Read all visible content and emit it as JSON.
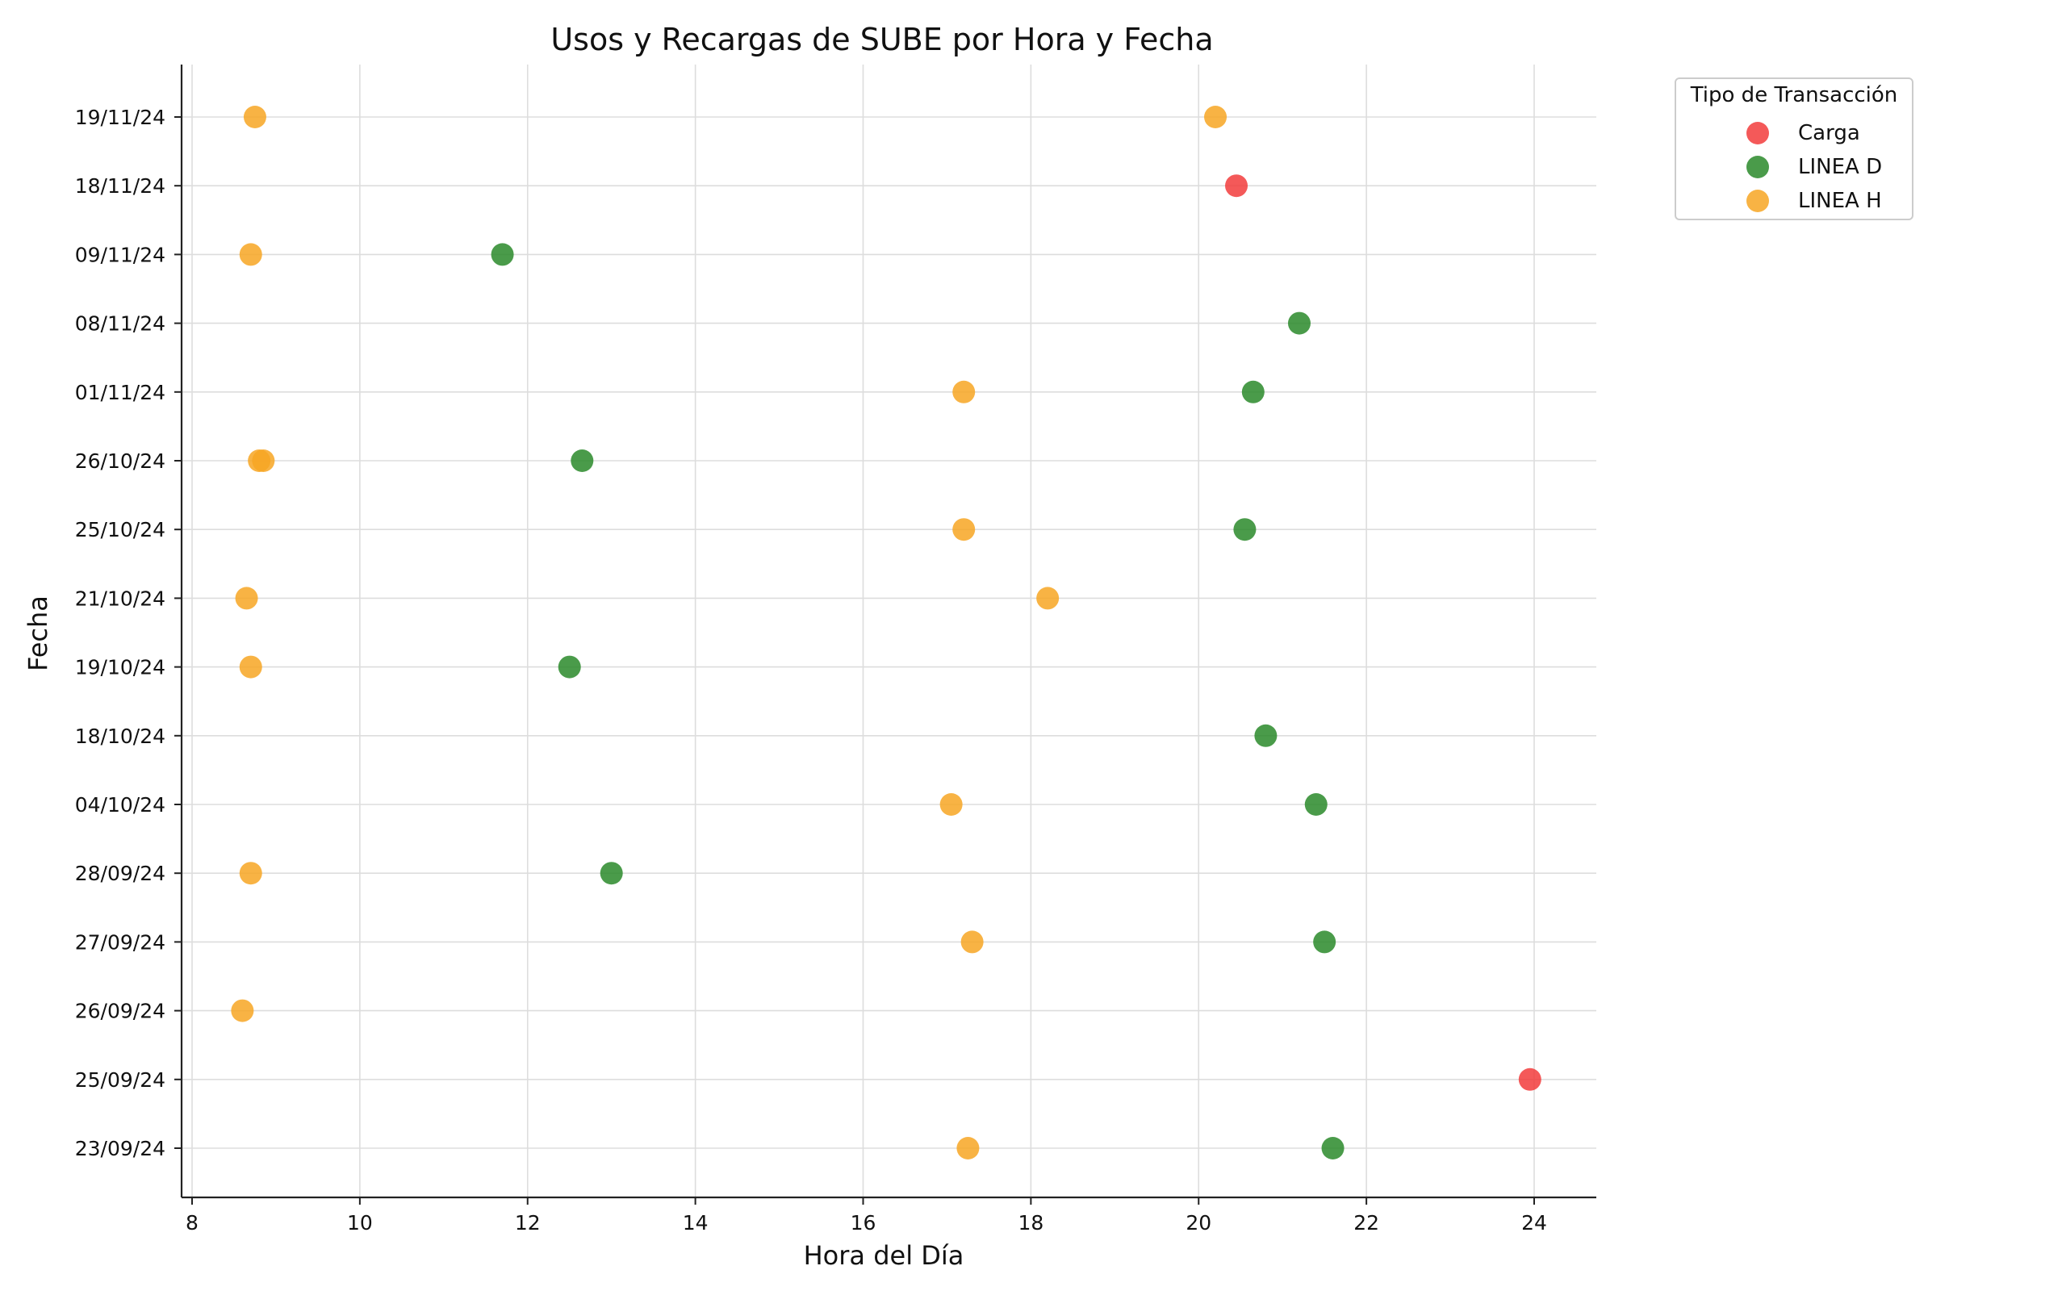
{
  "chart_data": {
    "type": "scatter",
    "title": "Usos y Recargas de SUBE por Hora y Fecha",
    "xlabel": "Hora del Día",
    "ylabel": "Fecha",
    "xlim": [
      7.9,
      24.7
    ],
    "xticks": [
      8,
      10,
      12,
      14,
      16,
      18,
      20,
      22,
      24
    ],
    "categories": [
      "23/09/24",
      "25/09/24",
      "26/09/24",
      "27/09/24",
      "28/09/24",
      "04/10/24",
      "18/10/24",
      "19/10/24",
      "21/10/24",
      "25/10/24",
      "26/10/24",
      "01/11/24",
      "08/11/24",
      "09/11/24",
      "18/11/24",
      "19/11/24"
    ],
    "grid": true,
    "legend": {
      "title": "Tipo de Transacción",
      "placement": "outside-top-right"
    },
    "series": [
      {
        "name": "Carga",
        "color": "#f23c3c",
        "points": [
          {
            "x": 20.45,
            "y": "18/11/24"
          },
          {
            "x": 23.95,
            "y": "25/09/24"
          }
        ]
      },
      {
        "name": "LINEA D",
        "color": "#2a8a2a",
        "points": [
          {
            "x": 11.7,
            "y": "09/11/24"
          },
          {
            "x": 21.2,
            "y": "08/11/24"
          },
          {
            "x": 20.65,
            "y": "01/11/24"
          },
          {
            "x": 12.65,
            "y": "26/10/24"
          },
          {
            "x": 20.55,
            "y": "25/10/24"
          },
          {
            "x": 12.5,
            "y": "19/10/24"
          },
          {
            "x": 20.8,
            "y": "18/10/24"
          },
          {
            "x": 21.4,
            "y": "04/10/24"
          },
          {
            "x": 13.0,
            "y": "28/09/24"
          },
          {
            "x": 21.5,
            "y": "27/09/24"
          },
          {
            "x": 21.6,
            "y": "23/09/24"
          }
        ]
      },
      {
        "name": "LINEA H",
        "color": "#f7a623",
        "points": [
          {
            "x": 8.75,
            "y": "19/11/24"
          },
          {
            "x": 20.2,
            "y": "19/11/24"
          },
          {
            "x": 8.7,
            "y": "09/11/24"
          },
          {
            "x": 17.2,
            "y": "01/11/24"
          },
          {
            "x": 8.8,
            "y": "26/10/24"
          },
          {
            "x": 8.85,
            "y": "26/10/24"
          },
          {
            "x": 17.2,
            "y": "25/10/24"
          },
          {
            "x": 8.65,
            "y": "21/10/24"
          },
          {
            "x": 18.2,
            "y": "21/10/24"
          },
          {
            "x": 8.7,
            "y": "19/10/24"
          },
          {
            "x": 17.05,
            "y": "04/10/24"
          },
          {
            "x": 8.7,
            "y": "28/09/24"
          },
          {
            "x": 17.3,
            "y": "27/09/24"
          },
          {
            "x": 8.6,
            "y": "26/09/24"
          },
          {
            "x": 17.25,
            "y": "23/09/24"
          }
        ]
      }
    ]
  }
}
